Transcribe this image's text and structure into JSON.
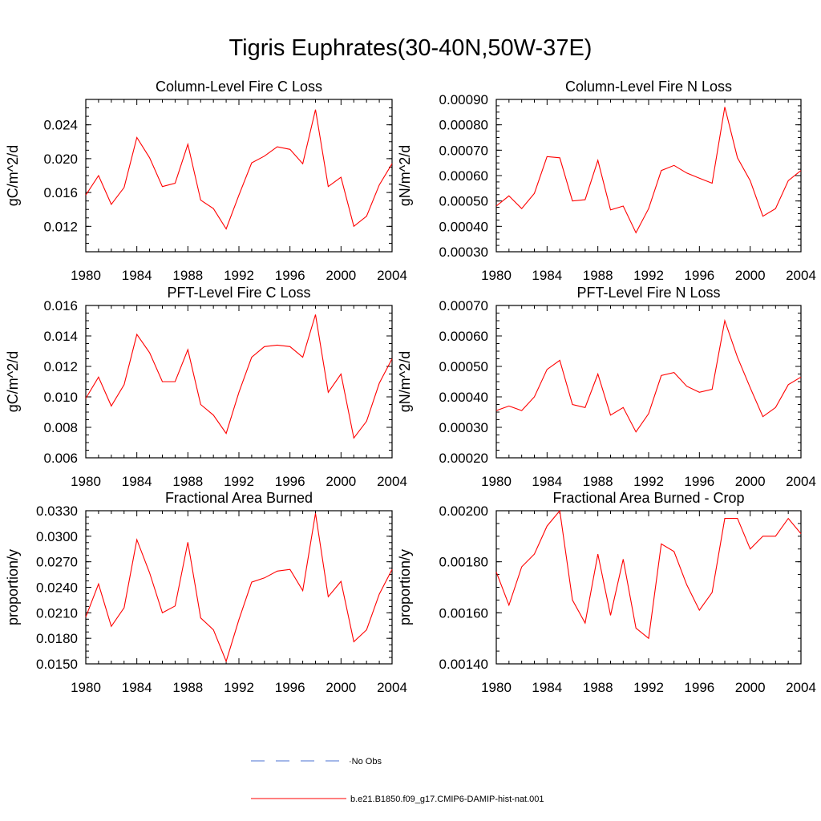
{
  "title": "Tigris Euphrates(30-40N,50W-37E)",
  "colors": {
    "model": "#ff0000",
    "obs": "#4a6fd0",
    "axis": "#000000"
  },
  "legend": {
    "obs_label": "No Obs",
    "model_label": "b.e21.B1850.f09_g17.CMIP6-DAMIP-hist-nat.001"
  },
  "chart_data": [
    {
      "type": "line",
      "title": "Column-Level Fire C Loss",
      "ylabel": "gC/m^2/d",
      "xlim": [
        1980,
        2004
      ],
      "ylim": [
        0.009,
        0.027
      ],
      "xticks": [
        "1980",
        "1984",
        "1988",
        "1992",
        "1996",
        "2000",
        "2004"
      ],
      "yticks": [
        "0.012",
        "0.016",
        "0.020",
        "0.024"
      ],
      "x": [
        1980,
        1981,
        1982,
        1983,
        1984,
        1985,
        1986,
        1987,
        1988,
        1989,
        1990,
        1991,
        1992,
        1993,
        1994,
        1995,
        1996,
        1997,
        1998,
        1999,
        2000,
        2001,
        2002,
        2003,
        2004
      ],
      "series": [
        {
          "values": [
            0.0157,
            0.018,
            0.0146,
            0.0166,
            0.0225,
            0.0201,
            0.0167,
            0.0171,
            0.0217,
            0.0151,
            0.0141,
            0.0117,
            0.0157,
            0.0195,
            0.0203,
            0.0214,
            0.0211,
            0.0194,
            0.0258,
            0.0167,
            0.0178,
            0.012,
            0.0132,
            0.0169,
            0.0194
          ]
        }
      ]
    },
    {
      "type": "line",
      "title": "Column-Level Fire N Loss",
      "ylabel": "gN/m^2/d",
      "xlim": [
        1980,
        2004
      ],
      "ylim": [
        0.0003,
        0.0009
      ],
      "xticks": [
        "1980",
        "1984",
        "1988",
        "1992",
        "1996",
        "2000",
        "2004"
      ],
      "yticks": [
        "0.00030",
        "0.00040",
        "0.00050",
        "0.00060",
        "0.00070",
        "0.00080",
        "0.00090"
      ],
      "x": [
        1980,
        1981,
        1982,
        1983,
        1984,
        1985,
        1986,
        1987,
        1988,
        1989,
        1990,
        1991,
        1992,
        1993,
        1994,
        1995,
        1996,
        1997,
        1998,
        1999,
        2000,
        2001,
        2002,
        2003,
        2004
      ],
      "series": [
        {
          "values": [
            0.00048,
            0.00052,
            0.00047,
            0.00053,
            0.000675,
            0.00067,
            0.0005,
            0.000505,
            0.00066,
            0.000465,
            0.00048,
            0.000375,
            0.00047,
            0.00062,
            0.00064,
            0.00061,
            0.00059,
            0.00057,
            0.00087,
            0.00067,
            0.00058,
            0.00044,
            0.00047,
            0.00058,
            0.00062
          ]
        }
      ]
    },
    {
      "type": "line",
      "title": "PFT-Level Fire C Loss",
      "ylabel": "gC/m^2/d",
      "xlim": [
        1980,
        2004
      ],
      "ylim": [
        0.006,
        0.016
      ],
      "xticks": [
        "1980",
        "1984",
        "1988",
        "1992",
        "1996",
        "2000",
        "2004"
      ],
      "yticks": [
        "0.006",
        "0.008",
        "0.010",
        "0.012",
        "0.014",
        "0.016"
      ],
      "x": [
        1980,
        1981,
        1982,
        1983,
        1984,
        1985,
        1986,
        1987,
        1988,
        1989,
        1990,
        1991,
        1992,
        1993,
        1994,
        1995,
        1996,
        1997,
        1998,
        1999,
        2000,
        2001,
        2002,
        2003,
        2004
      ],
      "series": [
        {
          "values": [
            0.0099,
            0.0113,
            0.0094,
            0.0108,
            0.0141,
            0.0129,
            0.011,
            0.011,
            0.0131,
            0.0095,
            0.0088,
            0.0076,
            0.0103,
            0.0126,
            0.0133,
            0.0134,
            0.0133,
            0.0126,
            0.0154,
            0.0103,
            0.0115,
            0.0073,
            0.0084,
            0.0109,
            0.0125
          ]
        }
      ]
    },
    {
      "type": "line",
      "title": "PFT-Level Fire N Loss",
      "ylabel": "gN/m^2/d",
      "xlim": [
        1980,
        2004
      ],
      "ylim": [
        0.0002,
        0.0007
      ],
      "xticks": [
        "1980",
        "1984",
        "1988",
        "1992",
        "1996",
        "2000",
        "2004"
      ],
      "yticks": [
        "0.00020",
        "0.00030",
        "0.00040",
        "0.00050",
        "0.00060",
        "0.00070"
      ],
      "x": [
        1980,
        1981,
        1982,
        1983,
        1984,
        1985,
        1986,
        1987,
        1988,
        1989,
        1990,
        1991,
        1992,
        1993,
        1994,
        1995,
        1996,
        1997,
        1998,
        1999,
        2000,
        2001,
        2002,
        2003,
        2004
      ],
      "series": [
        {
          "values": [
            0.000355,
            0.00037,
            0.000355,
            0.0004,
            0.00049,
            0.00052,
            0.000375,
            0.000365,
            0.000475,
            0.00034,
            0.000365,
            0.000285,
            0.000345,
            0.00047,
            0.00048,
            0.000435,
            0.000415,
            0.000425,
            0.00065,
            0.00053,
            0.00043,
            0.000335,
            0.000365,
            0.00044,
            0.000465
          ]
        }
      ]
    },
    {
      "type": "line",
      "title": "Fractional Area Burned",
      "ylabel": "proportion/y",
      "xlim": [
        1980,
        2004
      ],
      "ylim": [
        0.015,
        0.033
      ],
      "xticks": [
        "1980",
        "1984",
        "1988",
        "1992",
        "1996",
        "2000",
        "2004"
      ],
      "yticks": [
        "0.0150",
        "0.0180",
        "0.0210",
        "0.0240",
        "0.0270",
        "0.0300",
        "0.0330"
      ],
      "x": [
        1980,
        1981,
        1982,
        1983,
        1984,
        1985,
        1986,
        1987,
        1988,
        1989,
        1990,
        1991,
        1992,
        1993,
        1994,
        1995,
        1996,
        1997,
        1998,
        1999,
        2000,
        2001,
        2002,
        2003,
        2004
      ],
      "series": [
        {
          "values": [
            0.0205,
            0.0244,
            0.0194,
            0.0216,
            0.0296,
            0.0257,
            0.021,
            0.0218,
            0.0293,
            0.0204,
            0.019,
            0.0153,
            0.0202,
            0.0246,
            0.0251,
            0.0259,
            0.0261,
            0.0236,
            0.0327,
            0.0229,
            0.0247,
            0.0176,
            0.019,
            0.0232,
            0.0261
          ]
        }
      ]
    },
    {
      "type": "line",
      "title": "Fractional Area Burned - Crop",
      "ylabel": "proportion/y",
      "xlim": [
        1980,
        2004
      ],
      "ylim": [
        0.0014,
        0.002
      ],
      "xticks": [
        "1980",
        "1984",
        "1988",
        "1992",
        "1996",
        "2000",
        "2004"
      ],
      "yticks": [
        "0.00140",
        "0.00160",
        "0.00180",
        "0.00200"
      ],
      "x": [
        1980,
        1981,
        1982,
        1983,
        1984,
        1985,
        1986,
        1987,
        1988,
        1989,
        1990,
        1991,
        1992,
        1993,
        1994,
        1995,
        1996,
        1997,
        1998,
        1999,
        2000,
        2001,
        2002,
        2003,
        2004
      ],
      "series": [
        {
          "values": [
            0.00176,
            0.00163,
            0.00178,
            0.00183,
            0.00194,
            0.002,
            0.00165,
            0.00156,
            0.00183,
            0.00159,
            0.00181,
            0.00154,
            0.0015,
            0.00187,
            0.00184,
            0.00171,
            0.00161,
            0.00168,
            0.00197,
            0.00197,
            0.00185,
            0.0019,
            0.0019,
            0.00197,
            0.00191
          ]
        }
      ]
    }
  ]
}
